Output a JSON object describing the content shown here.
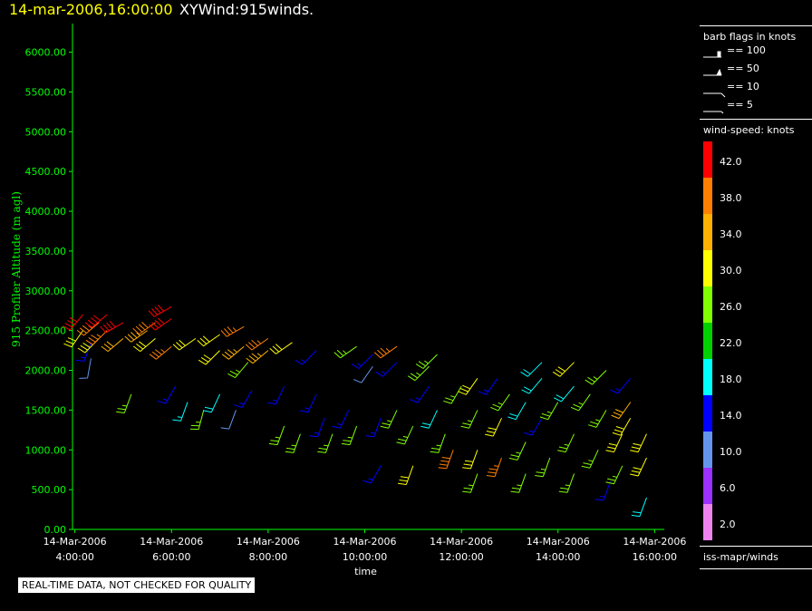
{
  "header": {
    "timestamp": "14-mar-2006,16:00:00",
    "title": "XYWind:915winds."
  },
  "chart_data": {
    "type": "scatter",
    "title": "XYWind:915winds.",
    "xlabel": "time",
    "ylabel": "915 Profiler Altitude (m agl)",
    "ylim": [
      0,
      6200
    ],
    "xlim_hours": [
      3.95,
      16.2
    ],
    "yticks": [
      "0.00",
      "500.00",
      "1000.00",
      "1500.00",
      "2000.00",
      "2500.00",
      "3000.00",
      "3500.00",
      "4000.00",
      "4500.00",
      "5000.00",
      "5500.00",
      "6000.00"
    ],
    "xticks": [
      {
        "date": "14-Mar-2006",
        "time": "4:00:00"
      },
      {
        "date": "14-Mar-2006",
        "time": "6:00:00"
      },
      {
        "date": "14-Mar-2006",
        "time": "8:00:00"
      },
      {
        "date": "14-Mar-2006",
        "time": "10:00:00"
      },
      {
        "date": "14-Mar-2006",
        "time": "12:00:00"
      },
      {
        "date": "14-Mar-2006",
        "time": "14:00:00"
      },
      {
        "date": "14-Mar-2006",
        "time": "16:00:00"
      }
    ],
    "series": [
      {
        "time": "4:10",
        "alt": 2700,
        "dir": 220,
        "kt": 41
      },
      {
        "time": "4:10",
        "alt": 2500,
        "dir": 215,
        "kt": 30
      },
      {
        "time": "4:20",
        "alt": 2350,
        "dir": 200,
        "kt": 14
      },
      {
        "time": "4:20",
        "alt": 2150,
        "dir": 190,
        "kt": 8
      },
      {
        "time": "4:30",
        "alt": 2600,
        "dir": 230,
        "kt": 36
      },
      {
        "time": "4:30",
        "alt": 2400,
        "dir": 225,
        "kt": 28
      },
      {
        "time": "4:40",
        "alt": 2700,
        "dir": 230,
        "kt": 42
      },
      {
        "time": "4:40",
        "alt": 2500,
        "dir": 225,
        "kt": 36
      },
      {
        "time": "5:00",
        "alt": 2600,
        "dir": 240,
        "kt": 40
      },
      {
        "time": "5:00",
        "alt": 2400,
        "dir": 230,
        "kt": 32
      },
      {
        "time": "5:30",
        "alt": 2500,
        "dir": 235,
        "kt": 34
      },
      {
        "time": "5:10",
        "alt": 1700,
        "dir": 200,
        "kt": 24
      },
      {
        "time": "5:40",
        "alt": 2600,
        "dir": 235,
        "kt": 39
      },
      {
        "time": "5:40",
        "alt": 2400,
        "dir": 230,
        "kt": 30
      },
      {
        "time": "6:00",
        "alt": 2800,
        "dir": 240,
        "kt": 42
      },
      {
        "time": "6:00",
        "alt": 2650,
        "dir": 235,
        "kt": 41
      },
      {
        "time": "6:00",
        "alt": 2300,
        "dir": 230,
        "kt": 36
      },
      {
        "time": "6:05",
        "alt": 1800,
        "dir": 210,
        "kt": 14
      },
      {
        "time": "6:20",
        "alt": 1600,
        "dir": 200,
        "kt": 16
      },
      {
        "time": "6:30",
        "alt": 2400,
        "dir": 235,
        "kt": 28
      },
      {
        "time": "6:40",
        "alt": 1500,
        "dir": 195,
        "kt": 26
      },
      {
        "time": "7:00",
        "alt": 2450,
        "dir": 235,
        "kt": 30
      },
      {
        "time": "7:00",
        "alt": 2250,
        "dir": 225,
        "kt": 30
      },
      {
        "time": "7:00",
        "alt": 1700,
        "dir": 205,
        "kt": 18
      },
      {
        "time": "7:20",
        "alt": 1500,
        "dir": 200,
        "kt": 8
      },
      {
        "time": "7:30",
        "alt": 2550,
        "dir": 240,
        "kt": 37
      },
      {
        "time": "7:30",
        "alt": 2300,
        "dir": 230,
        "kt": 34
      },
      {
        "time": "7:35",
        "alt": 2100,
        "dir": 220,
        "kt": 24
      },
      {
        "time": "7:40",
        "alt": 1750,
        "dir": 210,
        "kt": 14
      },
      {
        "time": "8:00",
        "alt": 2400,
        "dir": 235,
        "kt": 36
      },
      {
        "time": "8:00",
        "alt": 2250,
        "dir": 230,
        "kt": 34
      },
      {
        "time": "8:30",
        "alt": 2350,
        "dir": 235,
        "kt": 28
      },
      {
        "time": "8:20",
        "alt": 1800,
        "dir": 205,
        "kt": 14
      },
      {
        "time": "8:20",
        "alt": 1300,
        "dir": 200,
        "kt": 24
      },
      {
        "time": "8:40",
        "alt": 1200,
        "dir": 200,
        "kt": 24
      },
      {
        "time": "9:00",
        "alt": 2250,
        "dir": 225,
        "kt": 14
      },
      {
        "time": "9:00",
        "alt": 1700,
        "dir": 205,
        "kt": 14
      },
      {
        "time": "9:10",
        "alt": 1400,
        "dir": 200,
        "kt": 14
      },
      {
        "time": "9:20",
        "alt": 1200,
        "dir": 200,
        "kt": 24
      },
      {
        "time": "9:40",
        "alt": 1500,
        "dir": 205,
        "kt": 14
      },
      {
        "time": "9:50",
        "alt": 2300,
        "dir": 235,
        "kt": 26
      },
      {
        "time": "9:50",
        "alt": 1300,
        "dir": 200,
        "kt": 24
      },
      {
        "time": "10:10",
        "alt": 2200,
        "dir": 225,
        "kt": 14
      },
      {
        "time": "10:10",
        "alt": 2050,
        "dir": 215,
        "kt": 8
      },
      {
        "time": "10:20",
        "alt": 1400,
        "dir": 200,
        "kt": 14
      },
      {
        "time": "10:20",
        "alt": 800,
        "dir": 210,
        "kt": 14
      },
      {
        "time": "10:40",
        "alt": 2300,
        "dir": 235,
        "kt": 36
      },
      {
        "time": "10:40",
        "alt": 2100,
        "dir": 225,
        "kt": 14
      },
      {
        "time": "10:40",
        "alt": 1500,
        "dir": 205,
        "kt": 24
      },
      {
        "time": "11:00",
        "alt": 1300,
        "dir": 205,
        "kt": 24
      },
      {
        "time": "11:00",
        "alt": 800,
        "dir": 200,
        "kt": 28
      },
      {
        "time": "11:20",
        "alt": 2050,
        "dir": 225,
        "kt": 24
      },
      {
        "time": "11:20",
        "alt": 1800,
        "dir": 215,
        "kt": 14
      },
      {
        "time": "11:30",
        "alt": 2200,
        "dir": 225,
        "kt": 24
      },
      {
        "time": "11:30",
        "alt": 1500,
        "dir": 205,
        "kt": 18
      },
      {
        "time": "11:40",
        "alt": 1200,
        "dir": 200,
        "kt": 26
      },
      {
        "time": "11:50",
        "alt": 1000,
        "dir": 200,
        "kt": 38
      },
      {
        "time": "12:00",
        "alt": 1800,
        "dir": 210,
        "kt": 26
      },
      {
        "time": "12:20",
        "alt": 1900,
        "dir": 215,
        "kt": 28
      },
      {
        "time": "12:20",
        "alt": 1500,
        "dir": 205,
        "kt": 26
      },
      {
        "time": "12:20",
        "alt": 1000,
        "dir": 200,
        "kt": 30
      },
      {
        "time": "12:20",
        "alt": 700,
        "dir": 200,
        "kt": 24
      },
      {
        "time": "12:45",
        "alt": 1900,
        "dir": 215,
        "kt": 14
      },
      {
        "time": "12:50",
        "alt": 1400,
        "dir": 205,
        "kt": 28
      },
      {
        "time": "12:50",
        "alt": 900,
        "dir": 200,
        "kt": 36
      },
      {
        "time": "13:00",
        "alt": 1700,
        "dir": 215,
        "kt": 24
      },
      {
        "time": "13:20",
        "alt": 1600,
        "dir": 210,
        "kt": 18
      },
      {
        "time": "13:20",
        "alt": 1100,
        "dir": 205,
        "kt": 26
      },
      {
        "time": "13:20",
        "alt": 700,
        "dir": 200,
        "kt": 24
      },
      {
        "time": "13:40",
        "alt": 2100,
        "dir": 225,
        "kt": 18
      },
      {
        "time": "13:40",
        "alt": 1900,
        "dir": 220,
        "kt": 18
      },
      {
        "time": "13:40",
        "alt": 1400,
        "dir": 210,
        "kt": 14
      },
      {
        "time": "13:50",
        "alt": 900,
        "dir": 200,
        "kt": 26
      },
      {
        "time": "14:00",
        "alt": 1600,
        "dir": 210,
        "kt": 26
      },
      {
        "time": "14:20",
        "alt": 2100,
        "dir": 225,
        "kt": 30
      },
      {
        "time": "14:20",
        "alt": 1800,
        "dir": 220,
        "kt": 18
      },
      {
        "time": "14:20",
        "alt": 1200,
        "dir": 205,
        "kt": 24
      },
      {
        "time": "14:20",
        "alt": 700,
        "dir": 200,
        "kt": 24
      },
      {
        "time": "14:40",
        "alt": 1700,
        "dir": 215,
        "kt": 24
      },
      {
        "time": "14:50",
        "alt": 1000,
        "dir": 205,
        "kt": 26
      },
      {
        "time": "15:00",
        "alt": 2000,
        "dir": 225,
        "kt": 26
      },
      {
        "time": "15:00",
        "alt": 1500,
        "dir": 210,
        "kt": 24
      },
      {
        "time": "15:05",
        "alt": 600,
        "dir": 200,
        "kt": 14
      },
      {
        "time": "15:20",
        "alt": 1200,
        "dir": 205,
        "kt": 30
      },
      {
        "time": "15:20",
        "alt": 800,
        "dir": 205,
        "kt": 24
      },
      {
        "time": "15:30",
        "alt": 1900,
        "dir": 220,
        "kt": 14
      },
      {
        "time": "15:30",
        "alt": 1600,
        "dir": 215,
        "kt": 32
      },
      {
        "time": "15:30",
        "alt": 1400,
        "dir": 210,
        "kt": 30
      },
      {
        "time": "15:50",
        "alt": 1200,
        "dir": 205,
        "kt": 30
      },
      {
        "time": "15:50",
        "alt": 900,
        "dir": 205,
        "kt": 30
      },
      {
        "time": "15:50",
        "alt": 400,
        "dir": 200,
        "kt": 18
      }
    ]
  },
  "legend": {
    "barb_title": "barb flags in knots",
    "barbs": [
      {
        "label": "== 100",
        "kind": "100"
      },
      {
        "label": "== 50",
        "kind": "50"
      },
      {
        "label": "== 10",
        "kind": "10"
      },
      {
        "label": "== 5",
        "kind": "5"
      }
    ],
    "speed_title": "wind-speed: knots",
    "speed_scale": [
      {
        "label": "42.0",
        "color": "#ff0000"
      },
      {
        "label": "38.0",
        "color": "#ff7f00"
      },
      {
        "label": "34.0",
        "color": "#ffb000"
      },
      {
        "label": "30.0",
        "color": "#ffff00"
      },
      {
        "label": "26.0",
        "color": "#80ff00"
      },
      {
        "label": "22.0",
        "color": "#00d000"
      },
      {
        "label": "18.0",
        "color": "#00ffff"
      },
      {
        "label": "14.0",
        "color": "#0000ff"
      },
      {
        "label": "10.0",
        "color": "#6495ed"
      },
      {
        "label": "6.0",
        "color": "#9b30ff"
      },
      {
        "label": "2.0",
        "color": "#ee82ee"
      }
    ],
    "source": "iss-mapr/winds"
  },
  "footer": {
    "note": "REAL-TIME DATA, NOT CHECKED FOR QUALITY"
  },
  "colors": {
    "axis": "#00ff00",
    "background": "#000000",
    "timestamp": "#ffff00"
  }
}
